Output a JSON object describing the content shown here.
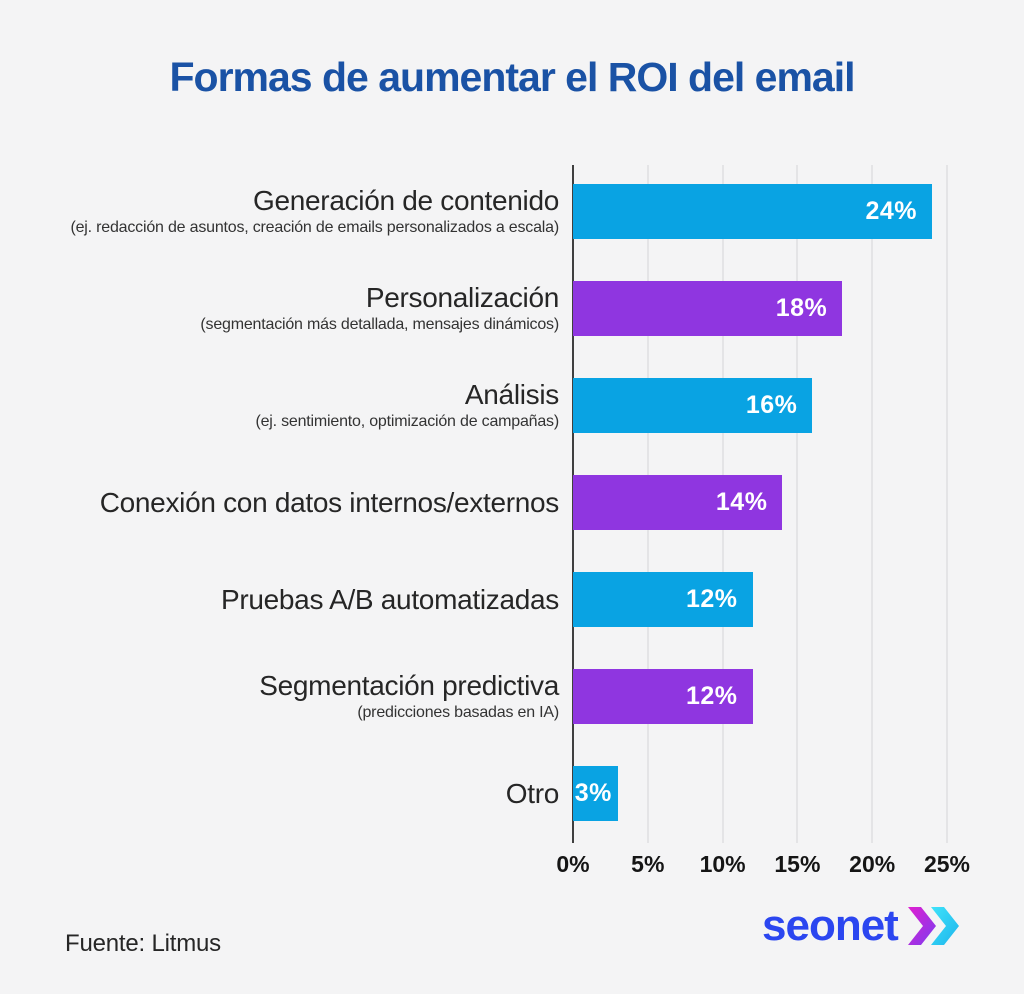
{
  "title": "Formas de aumentar el ROI del email",
  "source": "Fuente: Litmus",
  "logo": {
    "text": "seonet",
    "chevron_icon": "double-chevron-right"
  },
  "colors": {
    "background": "#f4f4f5",
    "title": "#1a52a5",
    "bar_blue": "#09a3e3",
    "bar_purple": "#8f36e0",
    "label_text": "#262626",
    "value_text": "#ffffff",
    "gridline": "#e4e4e6",
    "axis_line": "#3f3f3f",
    "tick_text": "#151515",
    "logo_blue": "#2b46f0",
    "chevron_magenta": "#e01fd0",
    "chevron_purple": "#7a3cf0",
    "chevron_cyan": "#29d9f7"
  },
  "chart_data": {
    "type": "bar",
    "orientation": "horizontal",
    "title": "Formas de aumentar el ROI del email",
    "categories": [
      "Generación de contenido",
      "Personalización",
      "Análisis",
      "Conexión con datos internos/externos",
      "Pruebas A/B automatizadas",
      "Segmentación predictiva",
      "Otro"
    ],
    "subtitles": [
      "(ej. redacción de asuntos, creación de emails personalizados a escala)",
      "(segmentación más detallada, mensajes dinámicos)",
      "(ej. sentimiento, optimización de campañas)",
      "",
      "",
      "(predicciones basadas en IA)",
      ""
    ],
    "values": [
      24,
      18,
      16,
      14,
      12,
      12,
      3
    ],
    "value_labels": [
      "24%",
      "18%",
      "16%",
      "14%",
      "12%",
      "12%",
      "3%"
    ],
    "bar_colors": [
      "blue",
      "purple",
      "blue",
      "purple",
      "blue",
      "purple",
      "blue"
    ],
    "x_ticks": [
      "0%",
      "5%",
      "10%",
      "15%",
      "20%",
      "25%"
    ],
    "xlim": [
      0,
      25
    ],
    "xlabel": "",
    "ylabel": "",
    "grid": "vertical",
    "legend": "none",
    "source": "Fuente: Litmus"
  }
}
